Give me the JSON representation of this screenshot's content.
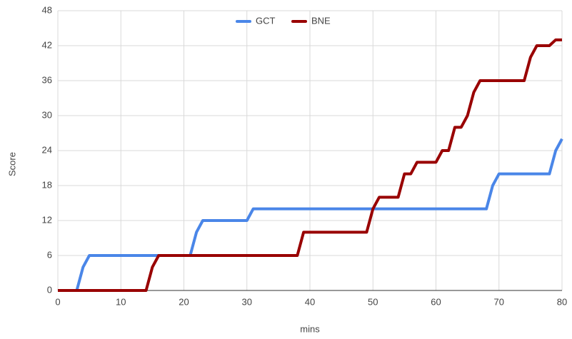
{
  "chart_data": {
    "type": "line",
    "xlabel": "mins",
    "ylabel": "Score",
    "xlim": [
      0,
      80
    ],
    "xticks": [
      0,
      10,
      20,
      30,
      40,
      50,
      60,
      70,
      80
    ],
    "ylim": [
      0,
      48
    ],
    "yticks": [
      0,
      6,
      12,
      18,
      24,
      30,
      36,
      42,
      48
    ],
    "grid": true,
    "legend": "top",
    "series": [
      {
        "name": "GCT",
        "color": "#4a86e8",
        "x": [
          0,
          3,
          4,
          5,
          21,
          22,
          23,
          30,
          31,
          68,
          69,
          70,
          78,
          79,
          80
        ],
        "values": [
          0,
          0,
          4,
          6,
          6,
          10,
          12,
          12,
          14,
          14,
          18,
          20,
          20,
          24,
          26
        ]
      },
      {
        "name": "BNE",
        "color": "#990000",
        "x": [
          0,
          14,
          15,
          16,
          38,
          39,
          49,
          50,
          51,
          54,
          55,
          56,
          57,
          60,
          61,
          62,
          63,
          64,
          65,
          66,
          67,
          74,
          75,
          76,
          78,
          79,
          80
        ],
        "values": [
          0,
          0,
          4,
          6,
          6,
          10,
          10,
          14,
          16,
          16,
          20,
          20,
          22,
          22,
          24,
          24,
          28,
          28,
          30,
          34,
          36,
          36,
          40,
          42,
          42,
          43,
          43
        ]
      }
    ]
  }
}
